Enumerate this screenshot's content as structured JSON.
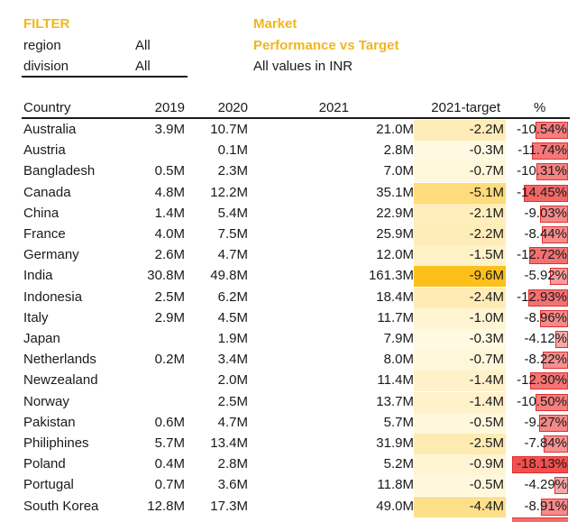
{
  "filter": {
    "title": "FILTER",
    "fields": [
      {
        "label": "region",
        "value": "All"
      },
      {
        "label": "division",
        "value": "All"
      }
    ]
  },
  "report": {
    "title": "Market",
    "subtitle": "Performance vs Target",
    "note": "All values in INR"
  },
  "colors": {
    "accent": "#f2b51f",
    "target_heat_max": "#fdbf1a",
    "target_heat_min": "#fffbe8",
    "pct_bar": "#f26f6f",
    "pct_border": "#e03030"
  },
  "table": {
    "columns": [
      "Country",
      "2019",
      "2020",
      "2021",
      "2021-target",
      "%"
    ],
    "rows": [
      {
        "country": "Australia",
        "y2019": "3.9M",
        "y2020": "10.7M",
        "y2021": "21.0M",
        "target": "-2.2M",
        "pct": "-10.54%",
        "target_value": -2.2,
        "pct_value": -10.54
      },
      {
        "country": "Austria",
        "y2019": "",
        "y2020": "0.1M",
        "y2021": "2.8M",
        "target": "-0.3M",
        "pct": "-11.74%",
        "target_value": -0.3,
        "pct_value": -11.74
      },
      {
        "country": "Bangladesh",
        "y2019": "0.5M",
        "y2020": "2.3M",
        "y2021": "7.0M",
        "target": "-0.7M",
        "pct": "-10.31%",
        "target_value": -0.7,
        "pct_value": -10.31
      },
      {
        "country": "Canada",
        "y2019": "4.8M",
        "y2020": "12.2M",
        "y2021": "35.1M",
        "target": "-5.1M",
        "pct": "-14.45%",
        "target_value": -5.1,
        "pct_value": -14.45
      },
      {
        "country": "China",
        "y2019": "1.4M",
        "y2020": "5.4M",
        "y2021": "22.9M",
        "target": "-2.1M",
        "pct": "-9.03%",
        "target_value": -2.1,
        "pct_value": -9.03
      },
      {
        "country": "France",
        "y2019": "4.0M",
        "y2020": "7.5M",
        "y2021": "25.9M",
        "target": "-2.2M",
        "pct": "-8.44%",
        "target_value": -2.2,
        "pct_value": -8.44
      },
      {
        "country": "Germany",
        "y2019": "2.6M",
        "y2020": "4.7M",
        "y2021": "12.0M",
        "target": "-1.5M",
        "pct": "-12.72%",
        "target_value": -1.5,
        "pct_value": -12.72
      },
      {
        "country": "India",
        "y2019": "30.8M",
        "y2020": "49.8M",
        "y2021": "161.3M",
        "target": "-9.6M",
        "pct": "-5.92%",
        "target_value": -9.6,
        "pct_value": -5.92
      },
      {
        "country": "Indonesia",
        "y2019": "2.5M",
        "y2020": "6.2M",
        "y2021": "18.4M",
        "target": "-2.4M",
        "pct": "-12.93%",
        "target_value": -2.4,
        "pct_value": -12.93
      },
      {
        "country": "Italy",
        "y2019": "2.9M",
        "y2020": "4.5M",
        "y2021": "11.7M",
        "target": "-1.0M",
        "pct": "-8.96%",
        "target_value": -1.0,
        "pct_value": -8.96
      },
      {
        "country": "Japan",
        "y2019": "",
        "y2020": "1.9M",
        "y2021": "7.9M",
        "target": "-0.3M",
        "pct": "-4.12%",
        "target_value": -0.3,
        "pct_value": -4.12
      },
      {
        "country": "Netherlands",
        "y2019": "0.2M",
        "y2020": "3.4M",
        "y2021": "8.0M",
        "target": "-0.7M",
        "pct": "-8.22%",
        "target_value": -0.7,
        "pct_value": -8.22
      },
      {
        "country": "Newzealand",
        "y2019": "",
        "y2020": "2.0M",
        "y2021": "11.4M",
        "target": "-1.4M",
        "pct": "-12.30%",
        "target_value": -1.4,
        "pct_value": -12.3
      },
      {
        "country": "Norway",
        "y2019": "",
        "y2020": "2.5M",
        "y2021": "13.7M",
        "target": "-1.4M",
        "pct": "-10.50%",
        "target_value": -1.4,
        "pct_value": -10.5
      },
      {
        "country": "Pakistan",
        "y2019": "0.6M",
        "y2020": "4.7M",
        "y2021": "5.7M",
        "target": "-0.5M",
        "pct": "-9.27%",
        "target_value": -0.5,
        "pct_value": -9.27
      },
      {
        "country": "Philiphines",
        "y2019": "5.7M",
        "y2020": "13.4M",
        "y2021": "31.9M",
        "target": "-2.5M",
        "pct": "-7.84%",
        "target_value": -2.5,
        "pct_value": -7.84
      },
      {
        "country": "Poland",
        "y2019": "0.4M",
        "y2020": "2.8M",
        "y2021": "5.2M",
        "target": "-0.9M",
        "pct": "-18.13%",
        "target_value": -0.9,
        "pct_value": -18.13
      },
      {
        "country": "Portugal",
        "y2019": "0.7M",
        "y2020": "3.6M",
        "y2021": "11.8M",
        "target": "-0.5M",
        "pct": "-4.29%",
        "target_value": -0.5,
        "pct_value": -4.29
      },
      {
        "country": "South Korea",
        "y2019": "12.8M",
        "y2020": "17.3M",
        "y2021": "49.0M",
        "target": "-4.4M",
        "pct": "-8.91%",
        "target_value": -4.4,
        "pct_value": -8.91
      }
    ]
  }
}
